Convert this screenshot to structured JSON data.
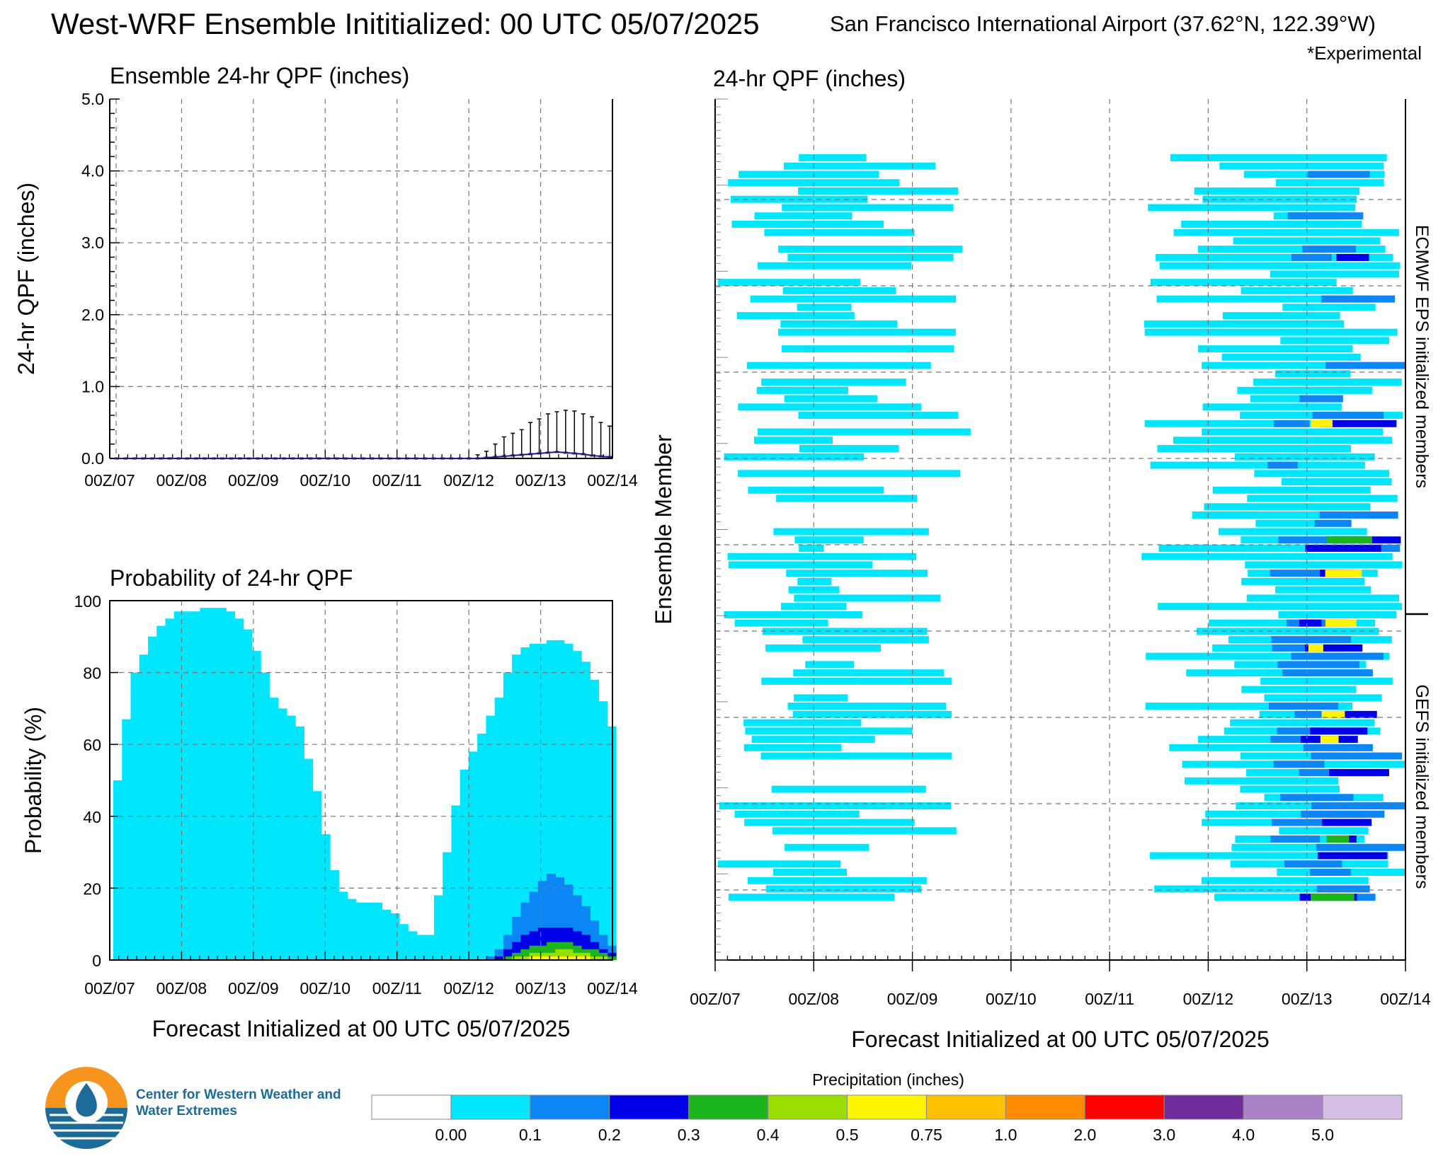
{
  "header": {
    "title": "West-WRF Ensemble Inititialized: 00 UTC 05/07/2025",
    "station": "San Francisco International Airport (37.62°N, 122.39°W)",
    "note": "*Experimental"
  },
  "footer": {
    "org": "Center for Western Weather and Water Extremes",
    "colorbar_title": "Precipitation (inches)"
  },
  "colors": {
    "qpf_0": "#00e6fc",
    "qpf_01": "#0d86f5",
    "qpf_02": "#0000e8",
    "qpf_03": "#1db51d",
    "qpf_04": "#9ade00",
    "qpf_05": "#fff500",
    "qpf_075": "#ffc000",
    "qpf_1": "#ff8c00",
    "qpf_2": "#ff0000",
    "qpf_3": "#712d9b",
    "qpf_4": "#aa82c8",
    "qpf_5": "#d6bfe4",
    "logo_orange": "#f7941d",
    "logo_blue": "#1d6b99"
  },
  "chart_data": [
    {
      "type": "box",
      "title": "Ensemble 24-hr QPF (inches)",
      "xlabel": "",
      "ylabel": "24-hr QPF (inches)",
      "ylim": [
        0,
        5
      ],
      "yticks": [
        "0.0",
        "1.0",
        "2.0",
        "3.0",
        "4.0",
        "5.0"
      ],
      "xticks": [
        "00Z/07",
        "00Z/08",
        "00Z/09",
        "00Z/10",
        "00Z/11",
        "00Z/12",
        "00Z/13",
        "00Z/14"
      ],
      "x_start_day": 0,
      "x_step_hours": 6,
      "grid": true,
      "median": [
        0,
        0,
        0,
        0,
        0,
        0,
        0,
        0,
        0,
        0,
        0,
        0,
        0,
        0,
        0,
        0,
        0,
        0,
        0,
        0,
        0,
        0,
        0,
        0,
        0,
        0,
        0,
        0,
        0,
        0,
        0,
        0,
        0,
        0,
        0,
        0,
        0,
        0,
        0,
        0,
        0,
        0,
        0.01,
        0.02,
        0.03,
        0.04,
        0.05,
        0.06,
        0.07,
        0.08,
        0.09,
        0.08,
        0.07,
        0.06,
        0.04,
        0.03,
        0.02
      ],
      "whisker_top": [
        0,
        0,
        0,
        0,
        0,
        0,
        0,
        0,
        0,
        0,
        0,
        0,
        0,
        0,
        0,
        0,
        0,
        0,
        0,
        0,
        0,
        0,
        0,
        0,
        0,
        0,
        0,
        0,
        0,
        0,
        0,
        0,
        0,
        0,
        0,
        0,
        0.01,
        0.01,
        0.02,
        0.02,
        0.03,
        0.05,
        0.1,
        0.2,
        0.3,
        0.35,
        0.4,
        0.5,
        0.55,
        0.62,
        0.65,
        0.67,
        0.66,
        0.62,
        0.58,
        0.5,
        0.45
      ]
    },
    {
      "type": "area",
      "title": "Probability of 24-hr QPF",
      "xlabel": "Forecast Initialized at 00 UTC 05/07/2025",
      "ylabel": "Probability (%)",
      "ylim": [
        0,
        100
      ],
      "yticks": [
        "0",
        "20",
        "40",
        "60",
        "80",
        "100"
      ],
      "xticks": [
        "00Z/07",
        "00Z/08",
        "00Z/09",
        "00Z/10",
        "00Z/11",
        "00Z/12",
        "00Z/13",
        "00Z/14"
      ],
      "x_step_hours": 3,
      "series": [
        {
          "name": "0.00",
          "values": [
            50,
            67,
            80,
            85,
            90,
            93,
            95,
            97,
            97,
            97,
            98,
            98,
            98,
            97,
            95,
            92,
            86,
            80,
            73,
            70,
            68,
            65,
            56,
            47,
            35,
            25,
            19,
            17,
            16,
            16,
            16,
            14,
            13,
            10,
            8,
            7,
            7,
            18,
            30,
            43,
            53,
            58,
            63,
            68,
            73,
            80,
            85,
            87,
            88,
            88,
            89,
            89,
            88,
            86,
            83,
            78,
            72,
            65
          ]
        },
        {
          "name": "0.1",
          "values": [
            0,
            0,
            0,
            0,
            0,
            0,
            0,
            0,
            0,
            0,
            0,
            0,
            0,
            0,
            0,
            0,
            0,
            0,
            0,
            0,
            0,
            0,
            0,
            0,
            0,
            0,
            0,
            0,
            0,
            0,
            0,
            0,
            0,
            0,
            0,
            0,
            0,
            0,
            0,
            0,
            0,
            0,
            0,
            1,
            3,
            7,
            12,
            16,
            19,
            22,
            24,
            23,
            21,
            18,
            15,
            11,
            7,
            4
          ]
        },
        {
          "name": "0.2",
          "values": [
            0,
            0,
            0,
            0,
            0,
            0,
            0,
            0,
            0,
            0,
            0,
            0,
            0,
            0,
            0,
            0,
            0,
            0,
            0,
            0,
            0,
            0,
            0,
            0,
            0,
            0,
            0,
            0,
            0,
            0,
            0,
            0,
            0,
            0,
            0,
            0,
            0,
            0,
            0,
            0,
            0,
            0,
            0,
            0,
            1,
            3,
            5,
            7,
            8,
            9,
            9,
            9,
            9,
            8,
            7,
            5,
            3,
            2
          ]
        },
        {
          "name": "0.3",
          "values": [
            0,
            0,
            0,
            0,
            0,
            0,
            0,
            0,
            0,
            0,
            0,
            0,
            0,
            0,
            0,
            0,
            0,
            0,
            0,
            0,
            0,
            0,
            0,
            0,
            0,
            0,
            0,
            0,
            0,
            0,
            0,
            0,
            0,
            0,
            0,
            0,
            0,
            0,
            0,
            0,
            0,
            0,
            0,
            0,
            0,
            1,
            2,
            3,
            4,
            4,
            5,
            5,
            5,
            4,
            3,
            3,
            2,
            1
          ]
        },
        {
          "name": "0.4",
          "values": [
            0,
            0,
            0,
            0,
            0,
            0,
            0,
            0,
            0,
            0,
            0,
            0,
            0,
            0,
            0,
            0,
            0,
            0,
            0,
            0,
            0,
            0,
            0,
            0,
            0,
            0,
            0,
            0,
            0,
            0,
            0,
            0,
            0,
            0,
            0,
            0,
            0,
            0,
            0,
            0,
            0,
            0,
            0,
            0,
            0,
            0,
            1,
            1,
            2,
            2,
            2,
            3,
            3,
            2,
            2,
            1,
            1,
            0
          ]
        },
        {
          "name": "0.5",
          "values": [
            0,
            0,
            0,
            0,
            0,
            0,
            0,
            0,
            0,
            0,
            0,
            0,
            0,
            0,
            0,
            0,
            0,
            0,
            0,
            0,
            0,
            0,
            0,
            0,
            0,
            0,
            0,
            0,
            0,
            0,
            0,
            0,
            0,
            0,
            0,
            0,
            0,
            0,
            0,
            0,
            0,
            0,
            0,
            0,
            0,
            0,
            0,
            0,
            1,
            1,
            1,
            1,
            1,
            1,
            1,
            0,
            0,
            0
          ]
        }
      ]
    },
    {
      "type": "heatmap",
      "title": "24-hr QPF (inches)",
      "xlabel": "Forecast Initialized at 00 UTC 05/07/2025",
      "ylabel": "Ensemble Member",
      "xticks": [
        "00Z/07",
        "00Z/08",
        "00Z/09",
        "00Z/10",
        "00Z/11",
        "00Z/12",
        "00Z/13",
        "00Z/14"
      ],
      "member_groups": [
        {
          "name": "ECMWF EPS initialized members",
          "members": 50
        },
        {
          "name": "GEFS initialized members",
          "members": 40
        }
      ],
      "members": 90
    }
  ],
  "colorbar": {
    "labels": [
      "0.00",
      "0.1",
      "0.2",
      "0.3",
      "0.4",
      "0.5",
      "0.75",
      "1.0",
      "2.0",
      "3.0",
      "4.0",
      "5.0"
    ],
    "colors": [
      "#ffffff",
      "#00e6fc",
      "#0d86f5",
      "#0000e8",
      "#1db51d",
      "#9ade00",
      "#fff500",
      "#ffc000",
      "#ff8c00",
      "#ff0000",
      "#712d9b",
      "#aa82c8",
      "#d6bfe4"
    ]
  }
}
